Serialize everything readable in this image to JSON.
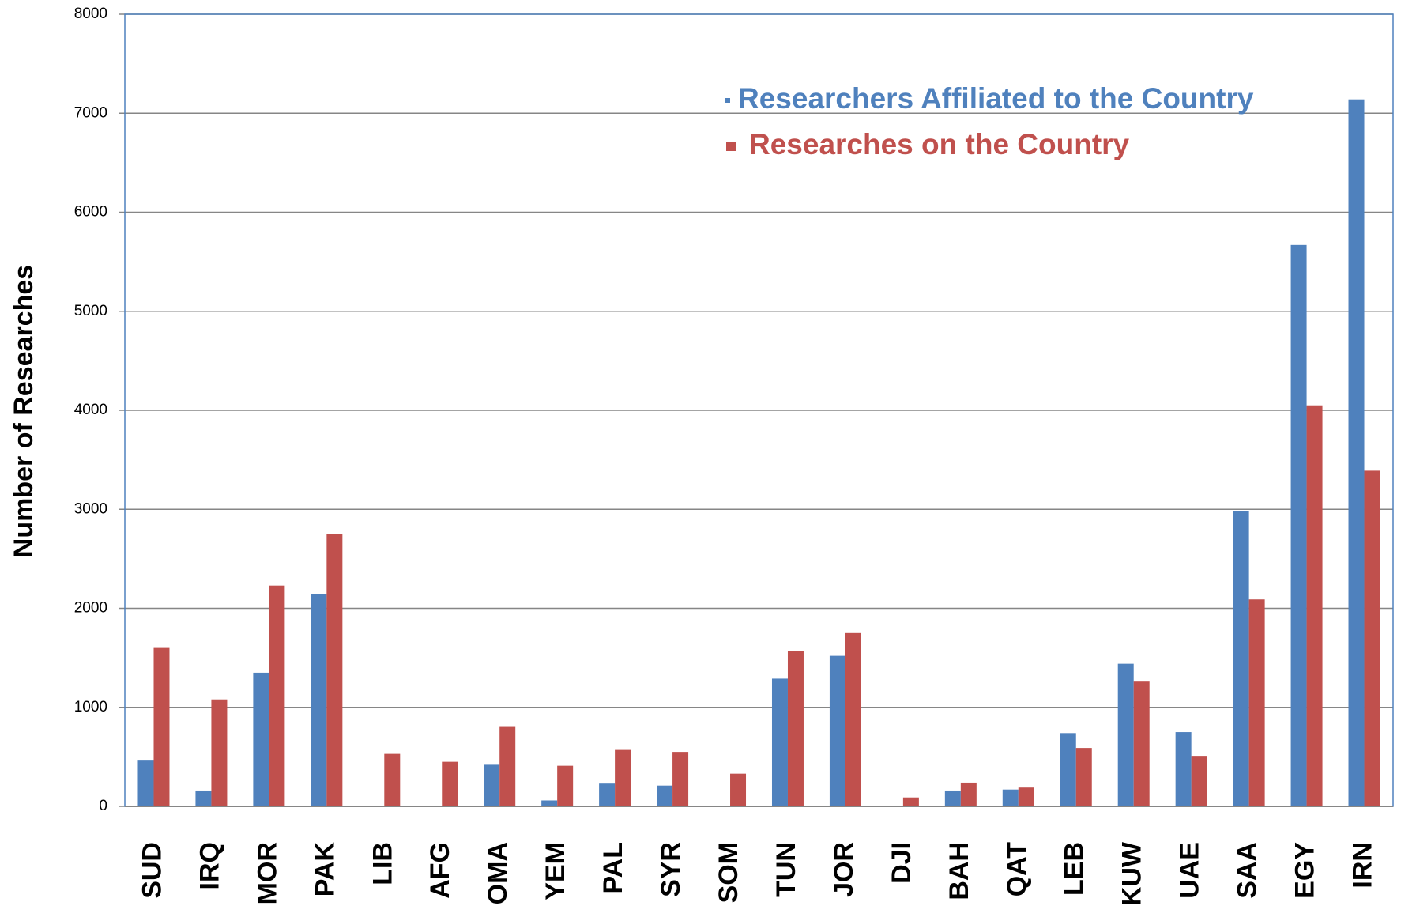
{
  "chart_data": {
    "type": "bar",
    "ylabel": "Number of Researches",
    "categories": [
      "SUD",
      "IRQ",
      "MOR",
      "PAK",
      "LIB",
      "AFG",
      "OMA",
      "YEM",
      "PAL",
      "SYR",
      "SOM",
      "TUN",
      "JOR",
      "DJI",
      "BAH",
      "QAT",
      "LEB",
      "KUW",
      "UAE",
      "SAA",
      "EGY",
      "IRN"
    ],
    "series": [
      {
        "name": "Researchers Affiliated to the Country",
        "color": "#4f81bd",
        "values": [
          470,
          160,
          1350,
          2140,
          0,
          0,
          420,
          60,
          230,
          210,
          0,
          1290,
          1520,
          0,
          160,
          170,
          740,
          1440,
          750,
          2980,
          5670,
          7140
        ]
      },
      {
        "name": "Researches on the Country",
        "color": "#c0504d",
        "values": [
          1600,
          1080,
          2230,
          2750,
          530,
          450,
          810,
          410,
          570,
          550,
          330,
          1570,
          1750,
          90,
          240,
          190,
          590,
          1260,
          510,
          2090,
          4050,
          3390
        ]
      }
    ],
    "ylim": [
      0,
      8000
    ],
    "yticks": [
      0,
      1000,
      2000,
      3000,
      4000,
      5000,
      6000,
      7000,
      8000
    ],
    "grid": true,
    "legend": "top-right"
  }
}
